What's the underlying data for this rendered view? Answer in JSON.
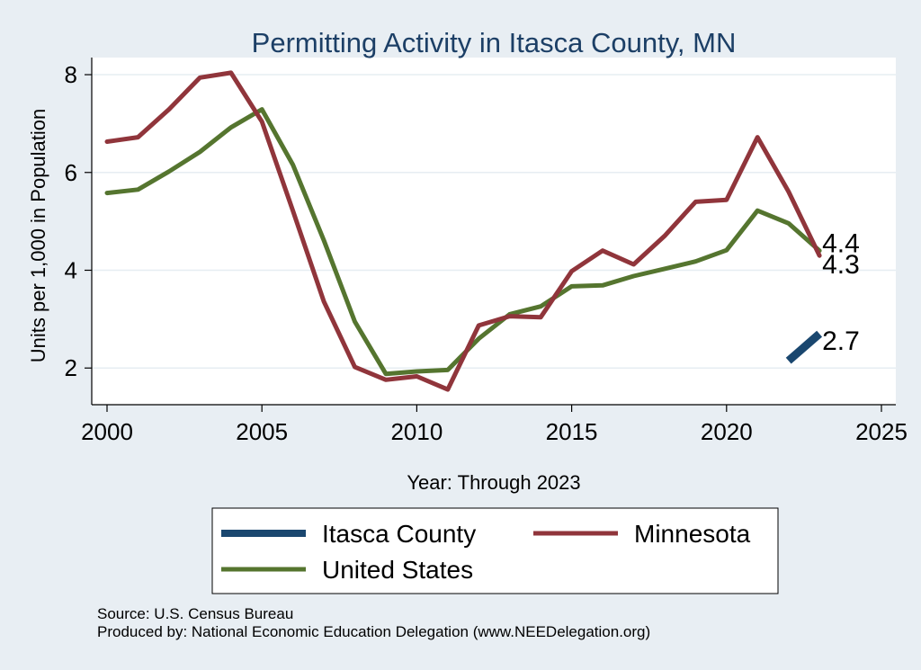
{
  "chart_data": {
    "type": "line",
    "title": "Permitting Activity in Itasca County, MN",
    "xlabel": "Year: Through 2023",
    "ylabel": "Units per 1,000 in Population",
    "xlim": [
      2000,
      2025
    ],
    "ylim": [
      1.25,
      8.35
    ],
    "xticks": [
      2000,
      2005,
      2010,
      2015,
      2020,
      2025
    ],
    "yticks": [
      2,
      4,
      6,
      8
    ],
    "grid": true,
    "legend_position": "bottom",
    "series": [
      {
        "name": "Itasca County",
        "color": "#1a476f",
        "x": [
          2022,
          2023
        ],
        "y": [
          2.15,
          2.7
        ],
        "end_label": "2.7"
      },
      {
        "name": "Minnesota",
        "color": "#90353b",
        "x": [
          2000,
          2001,
          2002,
          2003,
          2004,
          2005,
          2006,
          2007,
          2008,
          2009,
          2010,
          2011,
          2012,
          2013,
          2014,
          2015,
          2016,
          2017,
          2018,
          2019,
          2020,
          2021,
          2022,
          2023
        ],
        "y": [
          6.63,
          6.72,
          7.29,
          7.94,
          8.04,
          7.04,
          5.22,
          3.36,
          2.02,
          1.76,
          1.83,
          1.56,
          2.87,
          3.06,
          3.04,
          3.98,
          4.4,
          4.12,
          4.7,
          5.4,
          5.44,
          6.72,
          5.61,
          4.3
        ],
        "end_label": "4.3"
      },
      {
        "name": "United States",
        "color": "#55752f",
        "x": [
          2000,
          2001,
          2002,
          2003,
          2004,
          2005,
          2006,
          2007,
          2008,
          2009,
          2010,
          2011,
          2012,
          2013,
          2014,
          2015,
          2016,
          2017,
          2018,
          2019,
          2020,
          2021,
          2022,
          2023
        ],
        "y": [
          5.58,
          5.65,
          6.02,
          6.42,
          6.92,
          7.29,
          6.16,
          4.61,
          2.95,
          1.88,
          1.93,
          1.96,
          2.6,
          3.1,
          3.26,
          3.67,
          3.69,
          3.88,
          4.03,
          4.18,
          4.41,
          5.22,
          4.96,
          4.4
        ],
        "end_label": "4.4"
      }
    ]
  },
  "legend": {
    "items": [
      {
        "label": "Itasca County",
        "color": "#1a476f"
      },
      {
        "label": "Minnesota",
        "color": "#90353b"
      },
      {
        "label": "United States",
        "color": "#55752f"
      }
    ]
  },
  "notes": {
    "source": "Source: U.S. Census Bureau",
    "produced_by": "Produced by: National Economic Education Delegation (www.NEEDelegation.org)"
  }
}
